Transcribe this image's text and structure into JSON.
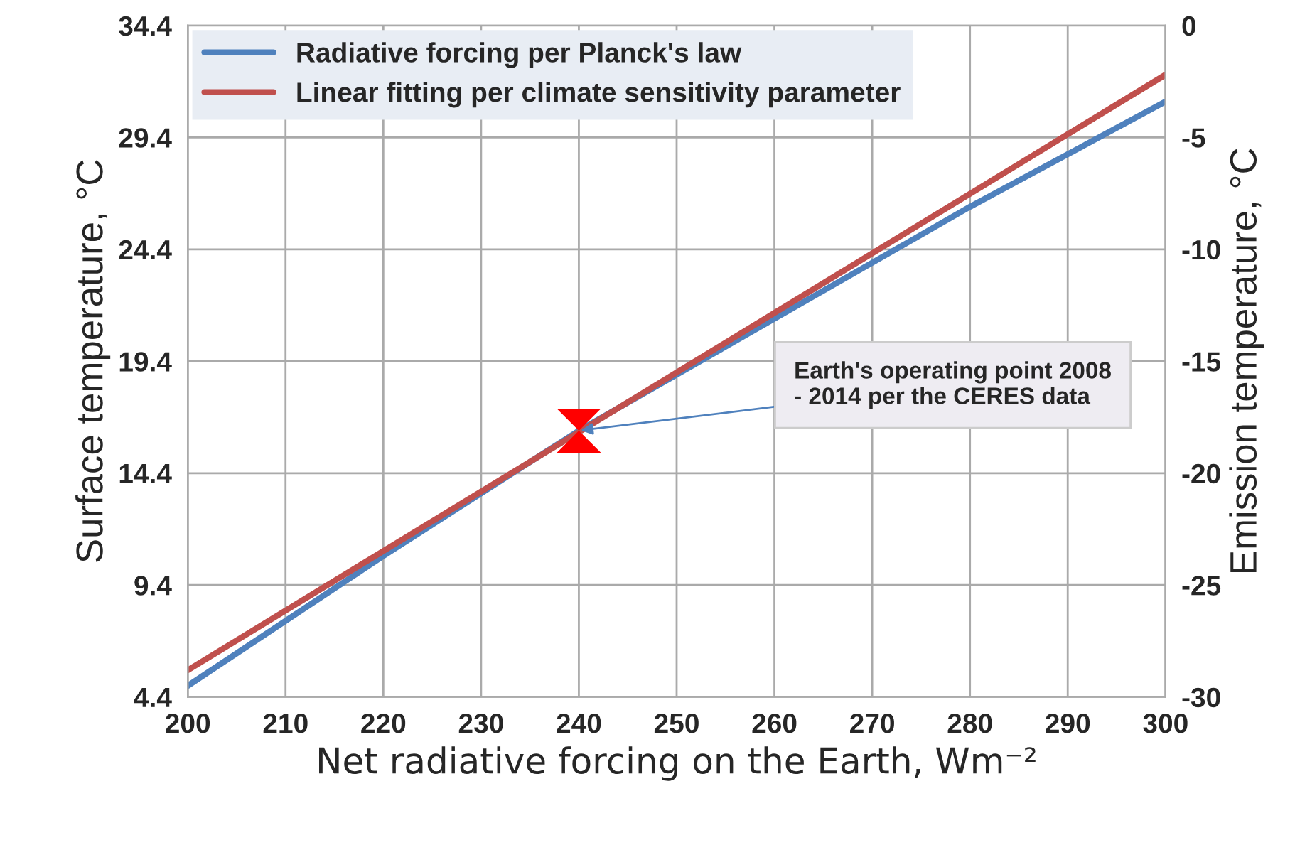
{
  "chart_data": {
    "type": "line",
    "xlabel": "Net radiative forcing on the Earth, Wm⁻²",
    "ylabel": "Surface temperature, °C",
    "y2label": "Emission temperature, °C",
    "x": [
      200,
      220,
      240,
      260,
      280,
      300
    ],
    "series": [
      {
        "name": "Radiative forcing per Planck's law",
        "color": "#4f81bd",
        "values": [
          4.9,
          10.7,
          16.3,
          21.3,
          26.3,
          31.0
        ]
      },
      {
        "name": "Linear fitting per climate sensitivity parameter",
        "color": "#c0504d",
        "x": [
          200,
          300
        ],
        "values": [
          5.6,
          32.2
        ]
      },
      {
        "type": "scatter",
        "color": "#ff0000",
        "x": [
          240
        ],
        "values": [
          16.3
        ]
      }
    ],
    "xlim": [
      200,
      300
    ],
    "xticks": [
      200,
      210,
      220,
      230,
      240,
      250,
      260,
      270,
      280,
      290,
      300
    ],
    "ylim": [
      4.4,
      34.4
    ],
    "yticks": [
      4.4,
      9.4,
      14.4,
      19.4,
      24.4,
      29.4,
      34.4
    ],
    "y2lim": [
      -30,
      0
    ],
    "y2ticks": [
      -30,
      -25,
      -20,
      -15,
      -10,
      -5,
      0
    ],
    "annotations": [
      {
        "text": "Earth's operating point 2008\n- 2014 per the CERES data",
        "x": 240,
        "y": 16.3
      }
    ],
    "grid": true,
    "legend": "top left"
  }
}
